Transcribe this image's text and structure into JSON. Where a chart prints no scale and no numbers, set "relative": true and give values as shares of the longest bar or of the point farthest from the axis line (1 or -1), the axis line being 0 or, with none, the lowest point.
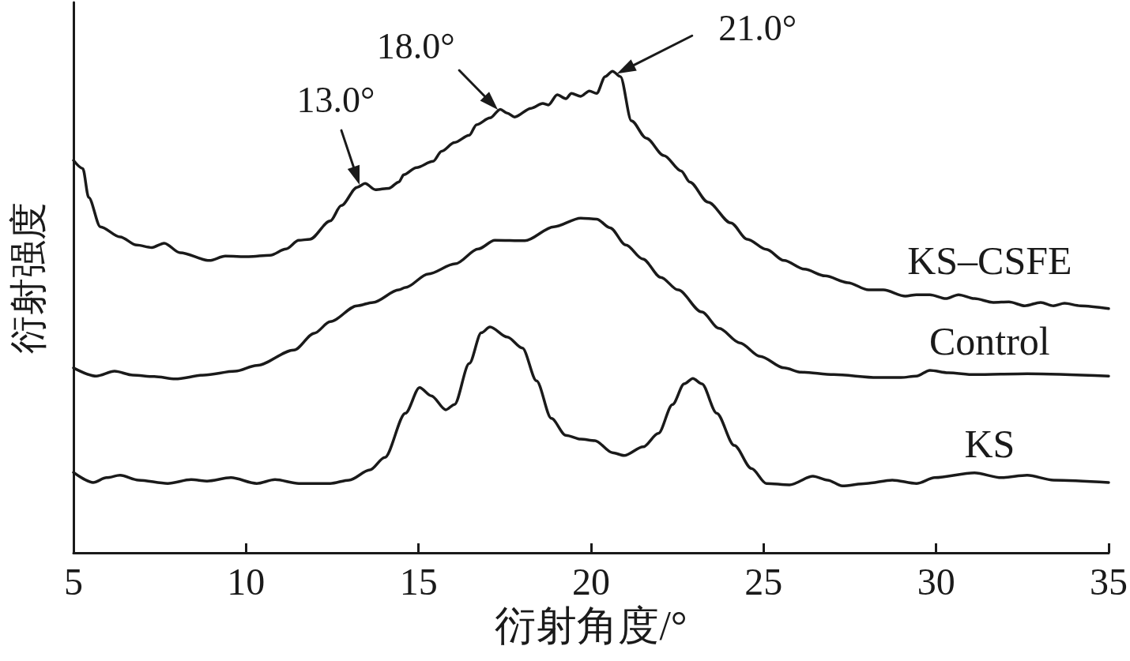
{
  "chart_data": {
    "type": "line",
    "relative": true,
    "xlabel": "衍射角度/°",
    "ylabel": "衍射强度",
    "xlim": [
      5,
      35
    ],
    "xticks": [
      5,
      10,
      15,
      20,
      25,
      30,
      35
    ],
    "series": [
      {
        "name": "KS–CSFE",
        "color": "#1a1a1a",
        "x": [
          5.0,
          5.27,
          5.44,
          5.78,
          6.35,
          6.83,
          7.27,
          7.63,
          8.09,
          8.94,
          9.4,
          10.08,
          10.7,
          11.16,
          11.53,
          11.85,
          12.44,
          12.76,
          13.22,
          13.45,
          13.75,
          14.14,
          14.43,
          14.57,
          14.94,
          15.42,
          15.67,
          16.04,
          16.47,
          16.68,
          17.07,
          17.37,
          17.57,
          17.78,
          18.26,
          18.6,
          18.76,
          19.02,
          19.27,
          19.43,
          19.7,
          19.95,
          20.16,
          20.41,
          20.62,
          20.85,
          21.17,
          21.6,
          22.11,
          22.61,
          22.86,
          23.39,
          24.05,
          24.53,
          25.08,
          25.59,
          26.18,
          26.78,
          27.44,
          28.04,
          28.47,
          29.11,
          29.43,
          29.82,
          30.28,
          30.65,
          31.11,
          31.66,
          32.11,
          32.57,
          33.03,
          33.4,
          33.72,
          34.18,
          35.0
        ],
        "values": [
          0.815,
          0.798,
          0.738,
          0.677,
          0.656,
          0.639,
          0.634,
          0.643,
          0.623,
          0.607,
          0.616,
          0.615,
          0.618,
          0.631,
          0.649,
          0.651,
          0.689,
          0.721,
          0.759,
          0.767,
          0.754,
          0.757,
          0.77,
          0.785,
          0.8,
          0.813,
          0.834,
          0.852,
          0.867,
          0.889,
          0.903,
          0.921,
          0.913,
          0.905,
          0.923,
          0.933,
          0.93,
          0.951,
          0.943,
          0.954,
          0.948,
          0.959,
          0.954,
          0.989,
          1.0,
          0.989,
          0.897,
          0.861,
          0.825,
          0.793,
          0.77,
          0.728,
          0.685,
          0.651,
          0.63,
          0.607,
          0.589,
          0.575,
          0.561,
          0.546,
          0.546,
          0.533,
          0.536,
          0.536,
          0.528,
          0.536,
          0.528,
          0.52,
          0.521,
          0.513,
          0.52,
          0.513,
          0.518,
          0.513,
          0.507
        ]
      },
      {
        "name": "Control",
        "color": "#1a1a1a",
        "x": [
          5.0,
          5.66,
          6.19,
          6.72,
          7.34,
          7.95,
          8.78,
          9.69,
          10.31,
          11.39,
          11.98,
          12.44,
          13.22,
          13.68,
          14.43,
          14.62,
          15.28,
          16.06,
          16.73,
          17.21,
          18.08,
          18.92,
          19.7,
          20.16,
          20.55,
          21.01,
          21.5,
          22.02,
          22.52,
          23.21,
          23.71,
          24.31,
          24.9,
          25.59,
          26.09,
          27.03,
          28.29,
          28.98,
          29.43,
          29.82,
          30.35,
          31.11,
          32.64,
          35.0
        ],
        "values": [
          0.384,
          0.367,
          0.377,
          0.369,
          0.366,
          0.361,
          0.369,
          0.377,
          0.389,
          0.421,
          0.456,
          0.48,
          0.513,
          0.52,
          0.546,
          0.551,
          0.579,
          0.6,
          0.631,
          0.649,
          0.648,
          0.677,
          0.695,
          0.693,
          0.675,
          0.639,
          0.61,
          0.572,
          0.546,
          0.5,
          0.466,
          0.436,
          0.408,
          0.384,
          0.375,
          0.37,
          0.364,
          0.364,
          0.367,
          0.379,
          0.374,
          0.37,
          0.372,
          0.367
        ]
      },
      {
        "name": "KS",
        "color": "#1a1a1a",
        "x": [
          5.0,
          5.57,
          5.96,
          6.35,
          6.88,
          7.73,
          8.41,
          8.87,
          9.56,
          10.31,
          10.84,
          11.53,
          12.44,
          12.99,
          13.59,
          14.02,
          14.62,
          15.03,
          15.37,
          15.79,
          16.04,
          16.47,
          16.82,
          17.07,
          17.57,
          18.01,
          18.42,
          18.85,
          19.27,
          19.7,
          20.11,
          20.62,
          20.96,
          21.51,
          21.95,
          22.36,
          22.7,
          22.95,
          23.21,
          23.64,
          24.15,
          24.65,
          25.08,
          25.75,
          26.43,
          26.85,
          27.28,
          27.97,
          28.73,
          29.43,
          29.96,
          31.11,
          31.89,
          32.64,
          33.4,
          35.0
        ],
        "values": [
          0.167,
          0.146,
          0.156,
          0.161,
          0.151,
          0.144,
          0.152,
          0.149,
          0.156,
          0.144,
          0.152,
          0.144,
          0.144,
          0.151,
          0.172,
          0.198,
          0.29,
          0.343,
          0.326,
          0.297,
          0.308,
          0.393,
          0.457,
          0.469,
          0.448,
          0.425,
          0.357,
          0.279,
          0.244,
          0.236,
          0.233,
          0.208,
          0.202,
          0.22,
          0.248,
          0.308,
          0.351,
          0.362,
          0.351,
          0.29,
          0.223,
          0.175,
          0.144,
          0.141,
          0.159,
          0.151,
          0.139,
          0.144,
          0.151,
          0.144,
          0.156,
          0.166,
          0.156,
          0.161,
          0.151,
          0.146
        ]
      }
    ],
    "annotations": [
      {
        "text": "13.0°",
        "x": 13.29,
        "y": 0.764
      },
      {
        "text": "18.0°",
        "x": 17.3,
        "y": 0.92
      },
      {
        "text": "21.0°",
        "x": 20.75,
        "y": 0.995
      }
    ]
  }
}
